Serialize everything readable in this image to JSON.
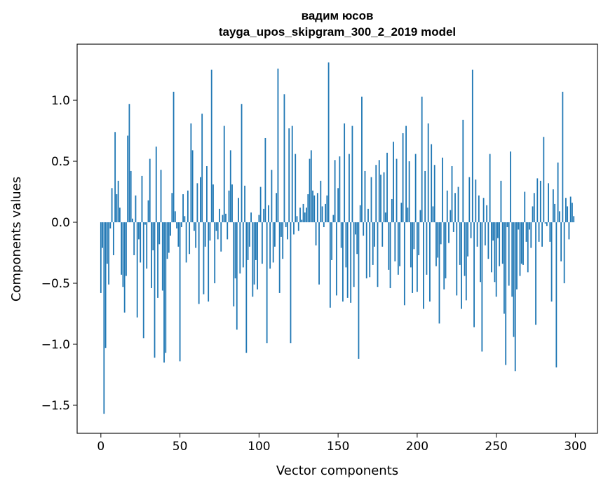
{
  "chart_data": {
    "type": "bar",
    "title": "вадим юсов",
    "subtitle": "tayga_upos_skipgram_300_2_2019 model",
    "xlabel": "Vector components",
    "ylabel": "Components values",
    "xlim": [
      -15,
      314
    ],
    "ylim": [
      -1.73,
      1.46
    ],
    "xticks": [
      0,
      50,
      100,
      150,
      200,
      250,
      300
    ],
    "yticks": [
      -1.5,
      -1.0,
      -0.5,
      0.0,
      0.5,
      1.0
    ],
    "xtick_labels": [
      "0",
      "50",
      "100",
      "150",
      "200",
      "250",
      "300"
    ],
    "ytick_labels": [
      "−1.5",
      "−1.0",
      "−0.5",
      "0.0",
      "0.5",
      "1.0"
    ],
    "bar_color": "#1f77b4",
    "series": [
      {
        "name": "components",
        "values": [
          -0.58,
          -0.21,
          -1.57,
          -1.03,
          -0.34,
          -0.51,
          -0.05,
          0.28,
          -0.27,
          0.74,
          0.23,
          0.34,
          0.12,
          -0.43,
          -0.53,
          -0.74,
          -0.44,
          0.71,
          0.97,
          0.42,
          0.03,
          -0.27,
          0.22,
          -0.78,
          -0.14,
          -0.33,
          0.38,
          -0.95,
          -0.02,
          -0.38,
          0.18,
          0.52,
          -0.54,
          -0.23,
          -1.11,
          0.62,
          -0.62,
          -0.18,
          0.43,
          -0.56,
          -1.15,
          -1.07,
          -0.3,
          -0.25,
          -0.11,
          0.24,
          1.07,
          0.09,
          -0.05,
          -0.2,
          -1.14,
          -0.04,
          0.23,
          0.05,
          -0.33,
          0.26,
          -0.26,
          0.81,
          0.59,
          -0.07,
          -0.21,
          0.32,
          -0.67,
          0.37,
          0.89,
          -0.59,
          -0.2,
          0.46,
          -0.65,
          -0.15,
          1.25,
          0.31,
          -0.5,
          -0.07,
          -0.14,
          0.11,
          -0.24,
          0.06,
          0.79,
          0.07,
          -0.14,
          0.26,
          0.59,
          0.31,
          -0.69,
          -0.46,
          -0.88,
          0.2,
          -0.42,
          0.97,
          -0.37,
          0.3,
          -1.07,
          -0.31,
          -0.2,
          0.08,
          -0.61,
          -0.51,
          -0.31,
          -0.55,
          0.06,
          0.29,
          -0.34,
          0.11,
          0.69,
          -0.99,
          0.14,
          -0.38,
          0.43,
          -0.33,
          -0.2,
          0.24,
          1.26,
          -0.58,
          -0.12,
          -0.3,
          1.05,
          -0.04,
          -0.14,
          0.77,
          -0.99,
          0.79,
          -0.1,
          0.56,
          0.05,
          -0.07,
          0.12,
          0.02,
          0.15,
          0.08,
          0.12,
          0.23,
          0.52,
          0.59,
          0.26,
          0.22,
          -0.19,
          0.24,
          -0.51,
          0.34,
          0.13,
          -0.04,
          0.15,
          0.22,
          1.31,
          -0.7,
          -0.31,
          0.06,
          0.51,
          -0.6,
          0.28,
          0.54,
          -0.21,
          -0.65,
          0.81,
          -0.37,
          -0.62,
          0.56,
          -0.66,
          0.79,
          -0.53,
          -0.1,
          -0.26,
          -1.12,
          0.14,
          1.03,
          -0.11,
          0.42,
          -0.46,
          0.11,
          -0.45,
          0.37,
          -0.35,
          -0.2,
          0.47,
          -0.53,
          0.51,
          0.39,
          -0.2,
          0.41,
          0.08,
          0.57,
          -0.39,
          -0.54,
          0.19,
          0.66,
          -0.32,
          0.52,
          -0.43,
          -0.36,
          0.16,
          0.73,
          -0.68,
          0.79,
          0.12,
          0.5,
          -0.37,
          -0.58,
          -0.22,
          0.56,
          -0.57,
          -0.27,
          0.1,
          1.03,
          -0.71,
          0.42,
          -0.43,
          0.81,
          -0.65,
          0.64,
          0.13,
          0.47,
          -0.36,
          -0.29,
          -0.83,
          -0.18,
          0.53,
          -0.55,
          -0.46,
          0.26,
          -0.17,
          0.1,
          0.46,
          -0.08,
          0.24,
          -0.6,
          0.29,
          -0.35,
          -0.71,
          0.84,
          -0.44,
          -0.64,
          -0.28,
          0.37,
          -0.13,
          1.25,
          -0.86,
          0.35,
          -0.2,
          0.22,
          -0.49,
          -1.06,
          0.2,
          -0.19,
          0.14,
          -0.3,
          0.56,
          -0.41,
          -0.15,
          -0.49,
          -0.61,
          -0.13,
          -0.36,
          0.34,
          -0.34,
          -0.75,
          -1.17,
          -0.04,
          -0.52,
          0.58,
          -0.61,
          -0.94,
          -1.22,
          -0.55,
          -0.06,
          -0.44,
          -0.34,
          -0.35,
          0.25,
          -0.16,
          -0.41,
          -0.06,
          -0.21,
          0.13,
          0.24,
          -0.84,
          0.36,
          -0.16,
          0.34,
          -0.2,
          0.7,
          -0.01,
          -0.03,
          0.32,
          -0.16,
          -0.65,
          0.27,
          0.15,
          -1.19,
          0.49,
          0.09,
          -0.32,
          1.07,
          -0.5,
          0.2,
          0.13,
          -0.14,
          0.21,
          0.16,
          0.05
        ]
      }
    ]
  }
}
